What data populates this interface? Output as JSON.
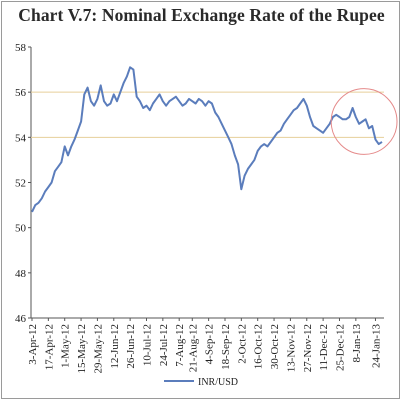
{
  "chart_data": {
    "type": "line",
    "title": "Chart V.7: Nominal Exchange Rate of the Rupee",
    "xlabel": "",
    "ylabel": "",
    "ylim": [
      46,
      58
    ],
    "yticks": [
      46,
      48,
      50,
      52,
      54,
      56,
      58
    ],
    "x_tick_labels": [
      "3-Apr-12",
      "17-Apr-12",
      "1-May-12",
      "15-May-12",
      "29-May-12",
      "12-Jun-12",
      "26-Jun-12",
      "10-Jul-12",
      "24-Jul-12",
      "7-Aug-12",
      "21-Aug-12",
      "4-Sep-12",
      "18-Sep-12",
      "2-Oct-12",
      "16-Oct-12",
      "30-Oct-12",
      "13-Nov-12",
      "27-Nov-12",
      "11-Dec-12",
      "25-Dec-12",
      "8-Jan-13",
      "24-Jan-13"
    ],
    "reference_lines": [
      54,
      56
    ],
    "legend_position": "bottom-center",
    "series": [
      {
        "name": "INR/USD",
        "color": "#5b7dbc",
        "x": [
          "3-Apr-12",
          "5-Apr-12",
          "9-Apr-12",
          "11-Apr-12",
          "13-Apr-12",
          "17-Apr-12",
          "19-Apr-12",
          "23-Apr-12",
          "25-Apr-12",
          "27-Apr-12",
          "1-May-12",
          "3-May-12",
          "7-May-12",
          "9-May-12",
          "11-May-12",
          "15-May-12",
          "17-May-12",
          "21-May-12",
          "23-May-12",
          "25-May-12",
          "29-May-12",
          "31-May-12",
          "4-Jun-12",
          "6-Jun-12",
          "8-Jun-12",
          "12-Jun-12",
          "14-Jun-12",
          "18-Jun-12",
          "20-Jun-12",
          "22-Jun-12",
          "26-Jun-12",
          "28-Jun-12",
          "2-Jul-12",
          "4-Jul-12",
          "6-Jul-12",
          "10-Jul-12",
          "12-Jul-12",
          "16-Jul-12",
          "18-Jul-12",
          "20-Jul-12",
          "24-Jul-12",
          "26-Jul-12",
          "30-Jul-12",
          "1-Aug-12",
          "3-Aug-12",
          "7-Aug-12",
          "9-Aug-12",
          "13-Aug-12",
          "16-Aug-12",
          "21-Aug-12",
          "23-Aug-12",
          "27-Aug-12",
          "29-Aug-12",
          "31-Aug-12",
          "4-Sep-12",
          "6-Sep-12",
          "10-Sep-12",
          "12-Sep-12",
          "14-Sep-12",
          "18-Sep-12",
          "20-Sep-12",
          "24-Sep-12",
          "26-Sep-12",
          "28-Sep-12",
          "2-Oct-12",
          "4-Oct-12",
          "8-Oct-12",
          "10-Oct-12",
          "12-Oct-12",
          "16-Oct-12",
          "18-Oct-12",
          "22-Oct-12",
          "24-Oct-12",
          "26-Oct-12",
          "30-Oct-12",
          "1-Nov-12",
          "5-Nov-12",
          "7-Nov-12",
          "9-Nov-12",
          "13-Nov-12",
          "15-Nov-12",
          "19-Nov-12",
          "21-Nov-12",
          "23-Nov-12",
          "27-Nov-12",
          "29-Nov-12",
          "3-Dec-12",
          "5-Dec-12",
          "7-Dec-12",
          "11-Dec-12",
          "13-Dec-12",
          "17-Dec-12",
          "19-Dec-12",
          "21-Dec-12",
          "25-Dec-12",
          "27-Dec-12",
          "31-Dec-12",
          "2-Jan-13",
          "4-Jan-13",
          "8-Jan-13",
          "10-Jan-13",
          "14-Jan-13",
          "16-Jan-13",
          "18-Jan-13",
          "22-Jan-13",
          "24-Jan-13",
          "28-Jan-13",
          "30-Jan-13"
        ],
        "y": [
          50.7,
          51.0,
          51.1,
          51.3,
          51.6,
          51.8,
          52.0,
          52.5,
          52.7,
          52.9,
          53.6,
          53.2,
          53.6,
          53.9,
          54.3,
          54.7,
          55.9,
          56.2,
          55.6,
          55.4,
          55.7,
          56.3,
          55.6,
          55.4,
          55.5,
          55.9,
          55.6,
          56.0,
          56.4,
          56.7,
          57.1,
          57.0,
          55.8,
          55.6,
          55.3,
          55.4,
          55.2,
          55.5,
          55.7,
          55.9,
          55.6,
          55.4,
          55.6,
          55.7,
          55.8,
          55.6,
          55.4,
          55.5,
          55.7,
          55.6,
          55.5,
          55.7,
          55.6,
          55.4,
          55.6,
          55.5,
          55.1,
          54.9,
          54.6,
          54.3,
          54.0,
          53.7,
          53.2,
          52.8,
          51.7,
          52.3,
          52.6,
          52.8,
          53.0,
          53.4,
          53.6,
          53.7,
          53.6,
          53.8,
          54.0,
          54.2,
          54.3,
          54.6,
          54.8,
          55.0,
          55.2,
          55.3,
          55.5,
          55.7,
          55.4,
          54.9,
          54.5,
          54.4,
          54.3,
          54.2,
          54.4,
          54.6,
          54.9,
          55.0,
          54.9,
          54.8,
          54.8,
          54.9,
          55.3,
          54.9,
          54.6,
          54.7,
          54.8,
          54.4,
          54.5,
          53.9,
          53.7,
          53.8
        ]
      }
    ]
  },
  "annotations": {
    "highlight_circle_color": "#e58a8a",
    "reference_line_color": "#e6cf9a"
  }
}
